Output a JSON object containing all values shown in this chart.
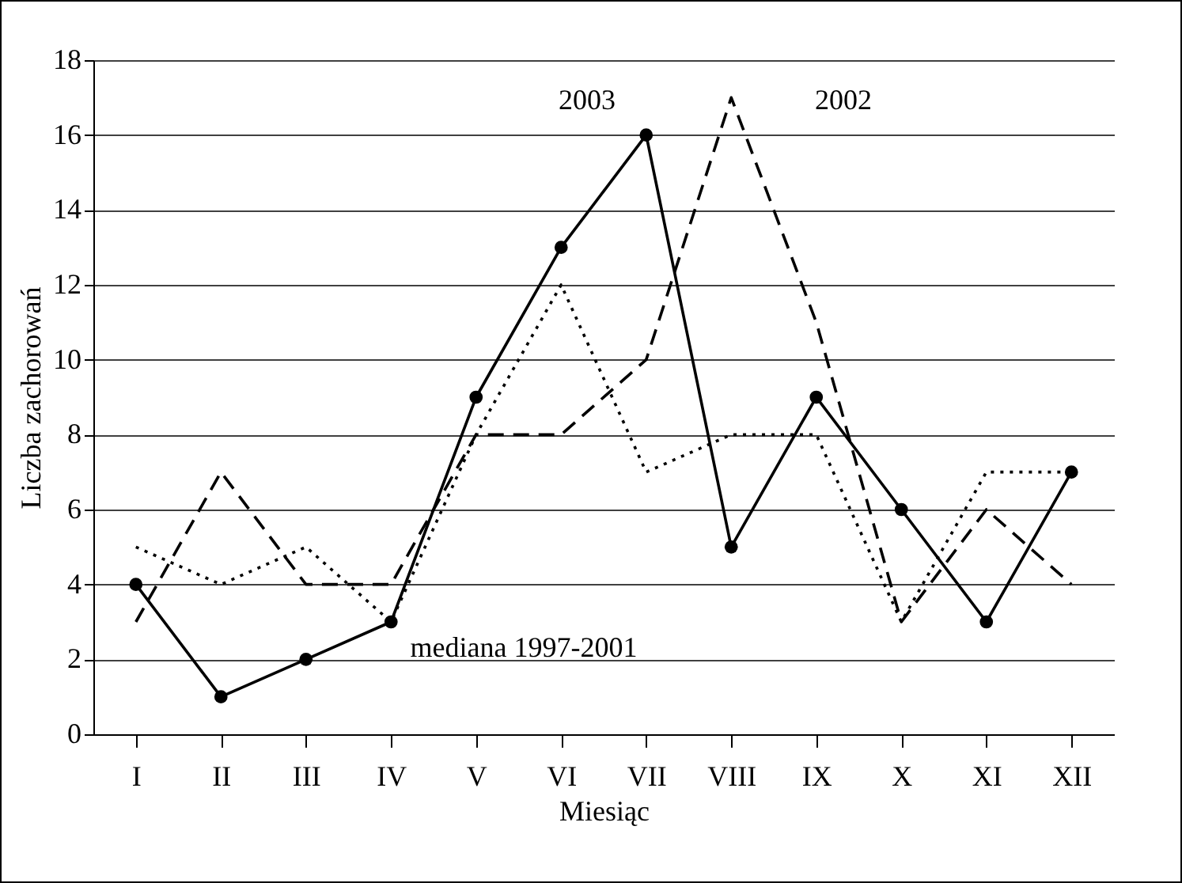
{
  "chart_data": {
    "type": "line",
    "xlabel": "Miesiąc",
    "ylabel": "Liczba zachorowań",
    "categories": [
      "I",
      "II",
      "III",
      "IV",
      "V",
      "VI",
      "VII",
      "VIII",
      "IX",
      "X",
      "XI",
      "XII"
    ],
    "series": [
      {
        "name": "2003",
        "color": "#000000",
        "line_style": "solid",
        "marker": "circle",
        "values": [
          4,
          1,
          2,
          3,
          9,
          13,
          16,
          5,
          9,
          6,
          3,
          7
        ]
      },
      {
        "name": "2002",
        "color": "#000000",
        "line_style": "dashed",
        "marker": "none",
        "values": [
          3,
          7,
          4,
          4,
          8,
          8,
          10,
          17,
          11,
          3,
          6,
          4
        ]
      },
      {
        "name": "mediana 1997-2001",
        "color": "#000000",
        "line_style": "dotted",
        "marker": "none",
        "values": [
          5,
          4,
          5,
          3,
          8,
          12,
          7,
          8,
          8,
          3,
          7,
          7
        ]
      }
    ],
    "ylim": [
      0,
      18
    ],
    "yticks": [
      0,
      2,
      4,
      6,
      8,
      10,
      12,
      14,
      16,
      18
    ],
    "grid": "y",
    "legend": false
  }
}
